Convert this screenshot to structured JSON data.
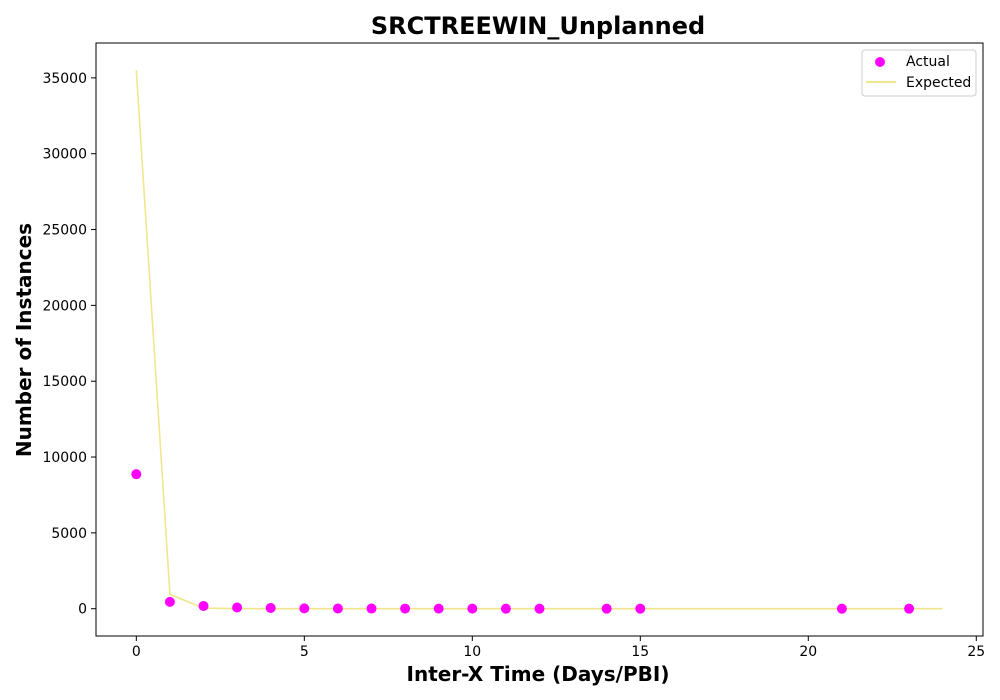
{
  "chart_data": {
    "type": "scatter",
    "title": "SRCTREEWIN_Unplanned",
    "xlabel": "Inter-X Time (Days/PBI)",
    "ylabel": "Number of Instances",
    "xlim": [
      -1.2,
      25.2
    ],
    "ylim": [
      -1800,
      37300
    ],
    "x_ticks": [
      0,
      5,
      10,
      15,
      20,
      25
    ],
    "y_ticks": [
      0,
      5000,
      10000,
      15000,
      20000,
      25000,
      30000,
      35000
    ],
    "grid": false,
    "legend_position": "top-right",
    "series": [
      {
        "name": "Actual",
        "kind": "scatter",
        "color": "#ff00ff",
        "x": [
          0,
          1,
          2,
          3,
          4,
          5,
          6,
          7,
          8,
          9,
          10,
          11,
          12,
          14,
          15,
          21,
          23
        ],
        "y": [
          8870,
          450,
          180,
          80,
          50,
          20,
          15,
          10,
          8,
          5,
          5,
          3,
          3,
          2,
          2,
          1,
          1
        ]
      },
      {
        "name": "Expected",
        "kind": "line",
        "color": "#f0e68c",
        "x": [
          0,
          1,
          2,
          3,
          4,
          5,
          6,
          7,
          8,
          9,
          10,
          11,
          12,
          13,
          14,
          15,
          16,
          17,
          18,
          19,
          20,
          21,
          22,
          23,
          24
        ],
        "y": [
          35500,
          950,
          30,
          5,
          0,
          0,
          0,
          0,
          0,
          0,
          0,
          0,
          0,
          0,
          0,
          0,
          0,
          0,
          0,
          0,
          0,
          0,
          0,
          0,
          0
        ]
      }
    ]
  }
}
